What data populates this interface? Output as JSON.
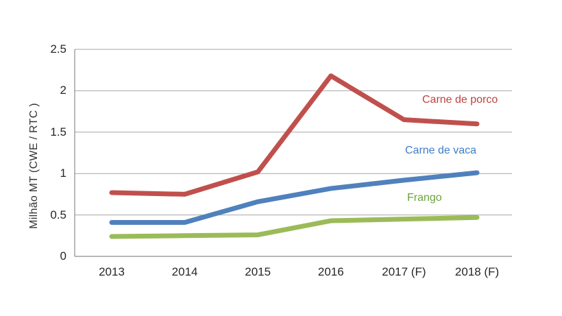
{
  "chart_data": {
    "type": "line",
    "title": "",
    "xlabel": "",
    "ylabel": "Milhão MT (CWE / RTC )",
    "categories": [
      "2013",
      "2014",
      "2015",
      "2016",
      "2017 (F)",
      "2018 (F)"
    ],
    "y_ticks": [
      "0",
      "0.5",
      "1",
      "1.5",
      "2",
      "2.5"
    ],
    "y_tick_values": [
      0,
      0.5,
      1,
      1.5,
      2,
      2.5
    ],
    "ylim": [
      0,
      2.5
    ],
    "grid": true,
    "legend_position": "inline-labels-right",
    "series": [
      {
        "name": "Carne de porco",
        "color": "#C0504D",
        "label_color": "#C1413D",
        "values": [
          0.77,
          0.75,
          1.02,
          2.18,
          1.65,
          1.6
        ]
      },
      {
        "name": "Carne de vaca",
        "color": "#4F81BD",
        "label_color": "#3E7EC6",
        "values": [
          0.41,
          0.41,
          0.66,
          0.82,
          0.92,
          1.01
        ]
      },
      {
        "name": "Frango",
        "color": "#9BBB59",
        "label_color": "#6FA13D",
        "values": [
          0.24,
          0.25,
          0.26,
          0.43,
          0.45,
          0.47
        ]
      }
    ]
  },
  "colors": {
    "background": "#FFFFFF",
    "gridline": "#A6A6A6",
    "axis": "#8C8C8C",
    "tick_text": "#262626"
  }
}
